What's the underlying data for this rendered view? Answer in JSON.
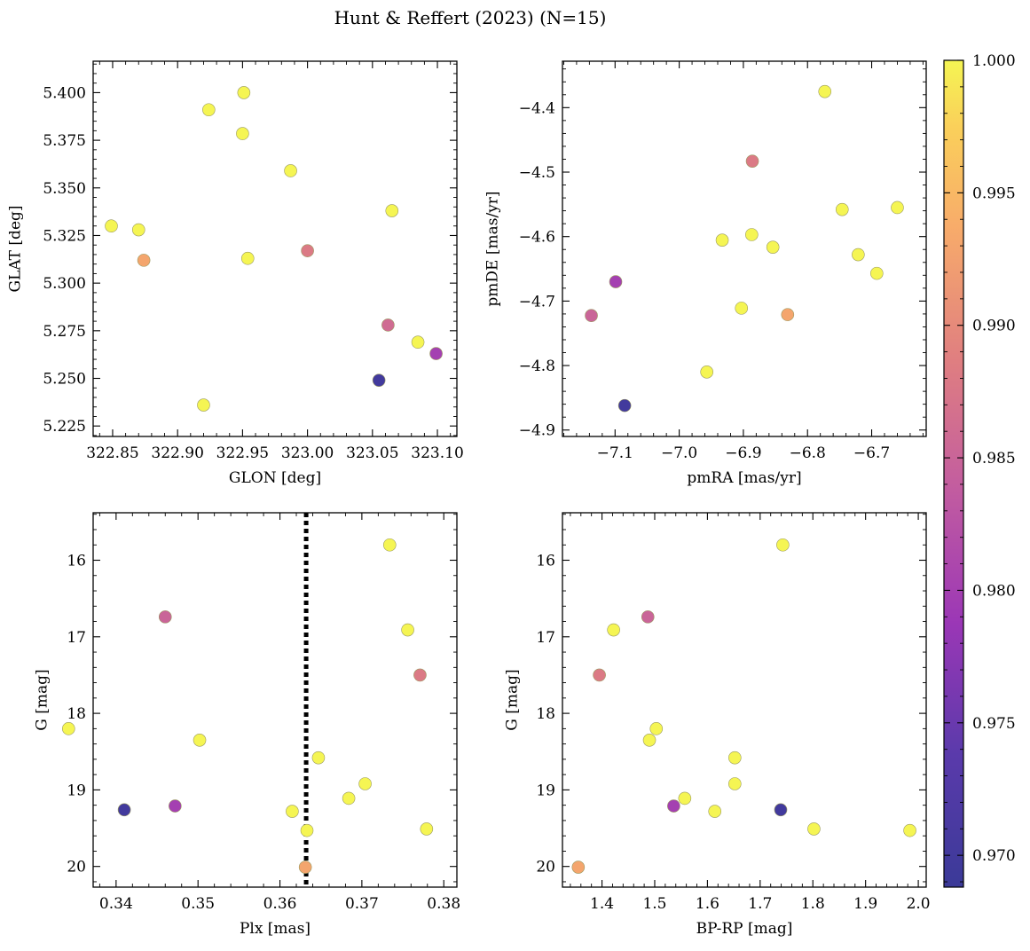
{
  "figure": {
    "title": "Hunt & Reffert (2023) (N=15)"
  },
  "colorbar": {
    "colormap": "plasma",
    "range": [
      0.9688,
      1.0
    ],
    "ticks": [
      0.97,
      0.975,
      0.98,
      0.985,
      0.99,
      0.995,
      1.0
    ],
    "tick_labels": [
      "0.970",
      "0.975",
      "0.980",
      "0.985",
      "0.990",
      "0.995",
      "1.000"
    ]
  },
  "chart_data": [
    {
      "type": "scatter",
      "id": "sky",
      "xlabel": "GLON [deg]",
      "ylabel": "GLAT [deg]",
      "xlim": [
        322.835,
        323.115
      ],
      "ylim": [
        5.2195,
        5.4165
      ],
      "xticks": [
        322.85,
        322.9,
        322.95,
        323.0,
        323.05,
        323.1
      ],
      "xtick_labels": [
        "322.85",
        "322.90",
        "322.95",
        "323.00",
        "323.05",
        "323.10"
      ],
      "yticks": [
        5.225,
        5.25,
        5.275,
        5.3,
        5.325,
        5.35,
        5.375,
        5.4
      ],
      "ytick_labels": [
        "5.225",
        "5.250",
        "5.275",
        "5.300",
        "5.325",
        "5.350",
        "5.375",
        "5.400"
      ],
      "points": [
        {
          "x": 322.849,
          "y": 5.33,
          "c": 1.0
        },
        {
          "x": 322.87,
          "y": 5.328,
          "c": 1.0
        },
        {
          "x": 322.874,
          "y": 5.312,
          "c": 0.993
        },
        {
          "x": 322.924,
          "y": 5.391,
          "c": 1.0
        },
        {
          "x": 322.92,
          "y": 5.236,
          "c": 1.0
        },
        {
          "x": 322.95,
          "y": 5.3785,
          "c": 1.0
        },
        {
          "x": 322.951,
          "y": 5.4,
          "c": 1.0
        },
        {
          "x": 322.954,
          "y": 5.313,
          "c": 1.0
        },
        {
          "x": 322.987,
          "y": 5.359,
          "c": 1.0
        },
        {
          "x": 323.0,
          "y": 5.317,
          "c": 0.988
        },
        {
          "x": 323.055,
          "y": 5.249,
          "c": 0.97
        },
        {
          "x": 323.062,
          "y": 5.278,
          "c": 0.986
        },
        {
          "x": 323.065,
          "y": 5.338,
          "c": 1.0
        },
        {
          "x": 323.085,
          "y": 5.269,
          "c": 1.0
        },
        {
          "x": 323.099,
          "y": 5.263,
          "c": 0.98
        }
      ]
    },
    {
      "type": "scatter",
      "id": "pm",
      "xlabel": "pmRA [mas/yr]",
      "ylabel": "pmDE [mas/yr]",
      "xlim": [
        -7.182,
        -6.615
      ],
      "ylim": [
        -4.91,
        -4.328
      ],
      "xticks": [
        -7.1,
        -7.0,
        -6.9,
        -6.8,
        -6.7
      ],
      "xtick_labels": [
        "−7.1",
        "−7.0",
        "−6.9",
        "−6.8",
        "−6.7"
      ],
      "yticks": [
        -4.9,
        -4.8,
        -4.7,
        -4.6,
        -4.5,
        -4.4
      ],
      "ytick_labels": [
        "−4.9",
        "−4.8",
        "−4.7",
        "−4.6",
        "−4.5",
        "−4.4"
      ],
      "points": [
        {
          "x": -7.137,
          "y": -4.7225,
          "c": 0.985
        },
        {
          "x": -7.099,
          "y": -4.67,
          "c": 0.98
        },
        {
          "x": -7.085,
          "y": -4.862,
          "c": 0.97
        },
        {
          "x": -6.957,
          "y": -4.81,
          "c": 1.0
        },
        {
          "x": -6.933,
          "y": -4.6055,
          "c": 1.0
        },
        {
          "x": -6.903,
          "y": -4.711,
          "c": 1.0
        },
        {
          "x": -6.887,
          "y": -4.597,
          "c": 1.0
        },
        {
          "x": -6.886,
          "y": -4.483,
          "c": 0.988
        },
        {
          "x": -6.854,
          "y": -4.6165,
          "c": 1.0
        },
        {
          "x": -6.831,
          "y": -4.721,
          "c": 0.993
        },
        {
          "x": -6.773,
          "y": -4.375,
          "c": 1.0
        },
        {
          "x": -6.746,
          "y": -4.558,
          "c": 1.0
        },
        {
          "x": -6.721,
          "y": -4.628,
          "c": 1.0
        },
        {
          "x": -6.692,
          "y": -4.657,
          "c": 1.0
        },
        {
          "x": -6.66,
          "y": -4.555,
          "c": 1.0
        }
      ]
    },
    {
      "type": "scatter",
      "id": "plx",
      "xlabel": "Plx [mas]",
      "ylabel": "G [mag]",
      "xlim": [
        0.3372,
        0.3816
      ],
      "ylim": [
        20.27,
        15.38
      ],
      "xticks": [
        0.34,
        0.35,
        0.36,
        0.37,
        0.38
      ],
      "xtick_labels": [
        "0.34",
        "0.35",
        "0.36",
        "0.37",
        "0.38"
      ],
      "yticks": [
        16,
        17,
        18,
        19,
        20
      ],
      "ytick_labels": [
        "16",
        "17",
        "18",
        "19",
        "20"
      ],
      "vline": {
        "x": 0.3632,
        "style": "dotted"
      },
      "points": [
        {
          "x": 0.341,
          "y": 19.26,
          "c": 0.97
        },
        {
          "x": 0.3342,
          "y": 18.2,
          "c": 1.0
        },
        {
          "x": 0.346,
          "y": 16.74,
          "c": 0.985
        },
        {
          "x": 0.3472,
          "y": 19.21,
          "c": 0.98
        },
        {
          "x": 0.3502,
          "y": 18.35,
          "c": 1.0
        },
        {
          "x": 0.3615,
          "y": 19.28,
          "c": 1.0
        },
        {
          "x": 0.3631,
          "y": 20.01,
          "c": 0.993
        },
        {
          "x": 0.3633,
          "y": 19.53,
          "c": 1.0
        },
        {
          "x": 0.3647,
          "y": 18.58,
          "c": 1.0
        },
        {
          "x": 0.3684,
          "y": 19.11,
          "c": 1.0
        },
        {
          "x": 0.3704,
          "y": 18.92,
          "c": 1.0
        },
        {
          "x": 0.3734,
          "y": 15.8,
          "c": 1.0
        },
        {
          "x": 0.3756,
          "y": 16.91,
          "c": 1.0
        },
        {
          "x": 0.3771,
          "y": 17.5,
          "c": 0.988
        },
        {
          "x": 0.3779,
          "y": 19.51,
          "c": 1.0
        }
      ]
    },
    {
      "type": "scatter",
      "id": "cmd",
      "xlabel": "BP-RP [mag]",
      "ylabel": "G [mag]",
      "xlim": [
        1.325,
        2.015
      ],
      "ylim": [
        20.27,
        15.38
      ],
      "xticks": [
        1.4,
        1.5,
        1.6,
        1.7,
        1.8,
        1.9,
        2.0
      ],
      "xtick_labels": [
        "1.4",
        "1.5",
        "1.6",
        "1.7",
        "1.8",
        "1.9",
        "2.0"
      ],
      "yticks": [
        16,
        17,
        18,
        19,
        20
      ],
      "ytick_labels": [
        "16",
        "17",
        "18",
        "19",
        "20"
      ],
      "points": [
        {
          "x": 1.355,
          "y": 20.01,
          "c": 0.993
        },
        {
          "x": 1.395,
          "y": 17.5,
          "c": 0.988
        },
        {
          "x": 1.422,
          "y": 16.91,
          "c": 1.0
        },
        {
          "x": 1.487,
          "y": 16.74,
          "c": 0.985
        },
        {
          "x": 1.49,
          "y": 18.35,
          "c": 1.0
        },
        {
          "x": 1.503,
          "y": 18.2,
          "c": 1.0
        },
        {
          "x": 1.536,
          "y": 19.21,
          "c": 0.98
        },
        {
          "x": 1.557,
          "y": 19.11,
          "c": 1.0
        },
        {
          "x": 1.614,
          "y": 19.28,
          "c": 1.0
        },
        {
          "x": 1.652,
          "y": 18.58,
          "c": 1.0
        },
        {
          "x": 1.652,
          "y": 18.92,
          "c": 1.0
        },
        {
          "x": 1.739,
          "y": 19.26,
          "c": 0.97
        },
        {
          "x": 1.743,
          "y": 15.8,
          "c": 1.0
        },
        {
          "x": 1.802,
          "y": 19.51,
          "c": 1.0
        },
        {
          "x": 1.984,
          "y": 19.53,
          "c": 1.0
        }
      ]
    }
  ]
}
